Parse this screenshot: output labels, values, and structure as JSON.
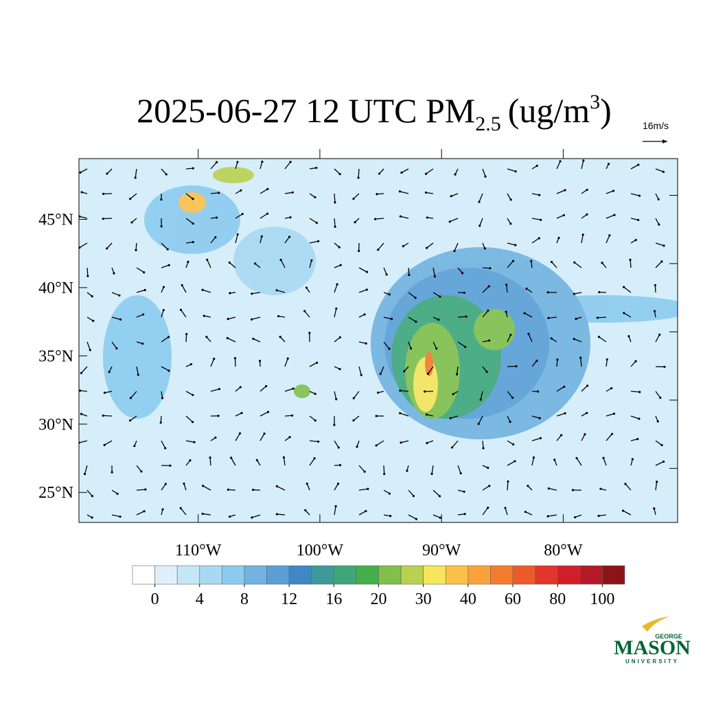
{
  "chart_data": {
    "type": "map",
    "title": "2025-06-27 12 UTC PM",
    "title_subscript": "2.5",
    "title_units": "(ug/m",
    "title_superscript": "3",
    "title_close": ")",
    "wind_reference": "16m/s",
    "xlim": [
      -119.8,
      -70.6
    ],
    "ylim": [
      22.8,
      49.45
    ],
    "xticks": [
      {
        "value": -110,
        "label": "110°W"
      },
      {
        "value": -100,
        "label": "100°W"
      },
      {
        "value": -90,
        "label": "90°W"
      },
      {
        "value": -80,
        "label": "80°W"
      }
    ],
    "yticks": [
      {
        "value": 25,
        "label": "25°N"
      },
      {
        "value": 30,
        "label": "30°N"
      },
      {
        "value": 35,
        "label": "35°N"
      },
      {
        "value": 40,
        "label": "40°N"
      },
      {
        "value": 45,
        "label": "45°N"
      }
    ],
    "colorbar": {
      "colors": [
        "#ffffff",
        "#dff0fb",
        "#c5e6f8",
        "#a8d8f2",
        "#8ccbef",
        "#72b3e0",
        "#5b9fd6",
        "#3f88c5",
        "#3e9a9a",
        "#3fa67a",
        "#43b04a",
        "#80c04a",
        "#b9d150",
        "#f5e65a",
        "#fbc14a",
        "#f9a23c",
        "#f47b2e",
        "#ec5a2a",
        "#e0362b",
        "#d11f2a",
        "#b51a26",
        "#8c1418"
      ],
      "ticks": [
        0,
        4,
        8,
        12,
        16,
        20,
        30,
        40,
        60,
        80,
        100
      ]
    }
  },
  "logo": {
    "top": "GEORGE",
    "main": "MASON",
    "bottom": "UNIVERSITY"
  }
}
